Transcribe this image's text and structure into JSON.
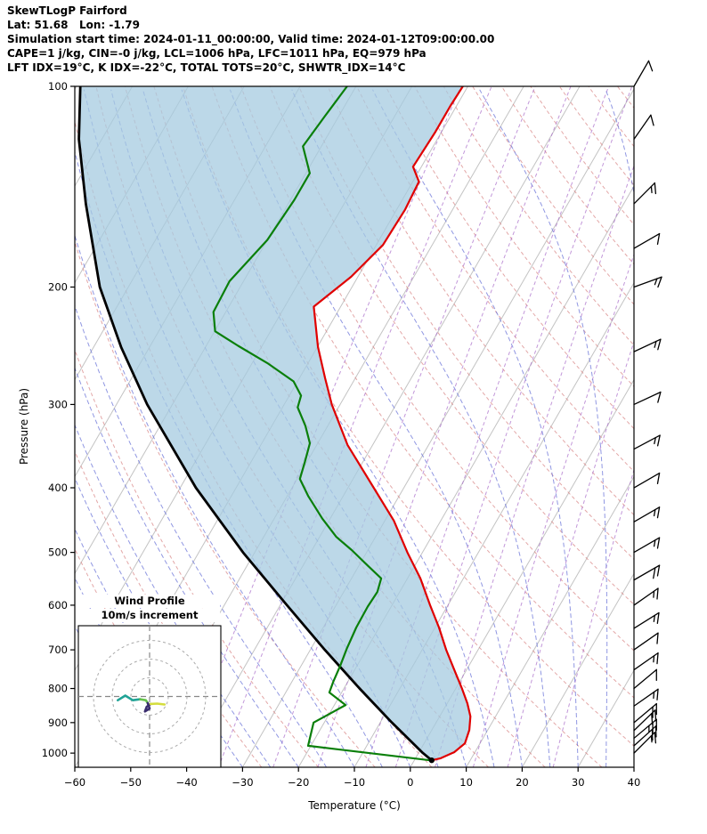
{
  "header": {
    "line1": "SkewTLogP Fairford",
    "line2": "Lat: 51.68   Lon: -1.79",
    "line3": "Simulation start time: 2024-01-11_00:00:00, Valid time: 2024-01-12T09:00:00.00",
    "line4": "CAPE=1 j/kg, CIN=-0 j/kg, LCL=1006 hPa, LFC=1011 hPa, EQ=979 hPa",
    "line5": "LFT IDX=19°C, K IDX=-22°C, TOTAL TOTS=20°C, SHWTR_IDX=14°C"
  },
  "chart_data": {
    "type": "line",
    "diagram": "skew-t-log-p",
    "title": "SkewTLogP Fairford",
    "xlabel": "Temperature (°C)",
    "ylabel": "Pressure (hPa)",
    "x_ticks": [
      -60,
      -50,
      -40,
      -30,
      -20,
      -10,
      0,
      10,
      20,
      30,
      40
    ],
    "y_ticks": [
      100,
      200,
      300,
      400,
      500,
      600,
      700,
      800,
      900,
      1000
    ],
    "t_min": -60,
    "t_max": 40,
    "p_top": 100,
    "p_bottom": 1050,
    "skew_slope": 0.577,
    "series": [
      {
        "name": "temperature",
        "color": "#e00000",
        "units": [
          "hPa",
          "°C"
        ],
        "points": [
          [
            1025,
            3.1
          ],
          [
            1018,
            4.5
          ],
          [
            997,
            6.3
          ],
          [
            967,
            7.3
          ],
          [
            923,
            6.7
          ],
          [
            881,
            5.5
          ],
          [
            842,
            3.6
          ],
          [
            800,
            1.1
          ],
          [
            756,
            -1.8
          ],
          [
            700,
            -5.7
          ],
          [
            648,
            -9.3
          ],
          [
            600,
            -13.2
          ],
          [
            547,
            -17.7
          ],
          [
            500,
            -22.7
          ],
          [
            448,
            -28.4
          ],
          [
            400,
            -35.4
          ],
          [
            345,
            -44.5
          ],
          [
            300,
            -51.5
          ],
          [
            274,
            -55.4
          ],
          [
            246,
            -59.9
          ],
          [
            214,
            -64.8
          ],
          [
            193,
            -61.2
          ],
          [
            173,
            -58.8
          ],
          [
            153,
            -58.5
          ],
          [
            139,
            -58.9
          ],
          [
            132,
            -61.5
          ],
          [
            117,
            -61.1
          ],
          [
            107,
            -61.1
          ],
          [
            100,
            -60.9
          ]
        ]
      },
      {
        "name": "dewpoint",
        "color": "#0a7f0a",
        "units": [
          "hPa",
          "°C"
        ],
        "points": [
          [
            1025,
            2.8
          ],
          [
            975,
            -20.5
          ],
          [
            900,
            -21.9
          ],
          [
            847,
            -18.0
          ],
          [
            811,
            -22.2
          ],
          [
            782,
            -22.6
          ],
          [
            740,
            -23.0
          ],
          [
            697,
            -23.6
          ],
          [
            648,
            -24.1
          ],
          [
            603,
            -24.2
          ],
          [
            573,
            -24.0
          ],
          [
            547,
            -24.7
          ],
          [
            523,
            -28.5
          ],
          [
            496,
            -32.9
          ],
          [
            474,
            -37.0
          ],
          [
            445,
            -41.4
          ],
          [
            412,
            -46.2
          ],
          [
            388,
            -49.5
          ],
          [
            365,
            -50.4
          ],
          [
            343,
            -51.4
          ],
          [
            323,
            -54.0
          ],
          [
            303,
            -57.3
          ],
          [
            291,
            -57.9
          ],
          [
            277,
            -60.7
          ],
          [
            260,
            -67.3
          ],
          [
            245,
            -74.3
          ],
          [
            233,
            -79.9
          ],
          [
            218,
            -82.2
          ],
          [
            196,
            -82.5
          ],
          [
            170,
            -80.0
          ],
          [
            148,
            -79.3
          ],
          [
            135,
            -79.3
          ],
          [
            123,
            -83.3
          ],
          [
            111,
            -82.5
          ],
          [
            100,
            -81.6
          ]
        ]
      },
      {
        "name": "parcel",
        "color": "#000000",
        "units": [
          "hPa",
          "°C"
        ],
        "points": [
          [
            1025,
            3.1
          ],
          [
            1000,
            0.8
          ],
          [
            900,
            -7.9
          ],
          [
            800,
            -17.2
          ],
          [
            700,
            -27.4
          ],
          [
            600,
            -38.8
          ],
          [
            500,
            -52.1
          ],
          [
            400,
            -67.2
          ],
          [
            300,
            -84.5
          ],
          [
            246,
            -95.1
          ],
          [
            200,
            -105.1
          ],
          [
            150,
            -116.2
          ],
          [
            120,
            -124.1
          ],
          [
            100,
            -129.3
          ]
        ]
      }
    ],
    "fill_between": {
      "from": "parcel",
      "to": "temperature",
      "color": "#a5cbe0",
      "opacity": 0.75
    },
    "background": {
      "isotherms": {
        "color": "#c3c3c3",
        "start": -160,
        "end": 40,
        "step": 10
      },
      "dry_adiabats": {
        "color": "#d98a8a",
        "theta_start": -40,
        "theta_end": 200,
        "step": 10
      },
      "moist_adiabats": {
        "color": "#6b74d8",
        "t0_start": -45,
        "t0_end": 40,
        "step": 5
      },
      "mixing_lines": {
        "color": "#a86bc9",
        "values_gkg": [
          0.1,
          0.2,
          0.5,
          1,
          2,
          3,
          5,
          8,
          12,
          20
        ]
      }
    },
    "wind_barbs_p_speed_dir": [
      [
        1000,
        15,
        45
      ],
      [
        975,
        20,
        48
      ],
      [
        950,
        25,
        50
      ],
      [
        925,
        20,
        46
      ],
      [
        900,
        20,
        50
      ],
      [
        850,
        15,
        55
      ],
      [
        800,
        10,
        50
      ],
      [
        750,
        15,
        55
      ],
      [
        700,
        10,
        55
      ],
      [
        650,
        15,
        58
      ],
      [
        600,
        15,
        55
      ],
      [
        550,
        20,
        60
      ],
      [
        500,
        15,
        60
      ],
      [
        450,
        15,
        60
      ],
      [
        400,
        10,
        60
      ],
      [
        350,
        15,
        62
      ],
      [
        300,
        10,
        65
      ],
      [
        250,
        15,
        65
      ],
      [
        200,
        15,
        70
      ],
      [
        175,
        10,
        60
      ],
      [
        150,
        15,
        45
      ],
      [
        120,
        10,
        35
      ],
      [
        100,
        12,
        30
      ]
    ],
    "hodograph": {
      "title": "Wind Profile",
      "subtitle": "10m/s increment",
      "ring_interval_ms": 10,
      "rings": [
        10,
        20,
        30
      ],
      "segments": [
        {
          "color": "#20a396",
          "points": [
            [
              -17,
              -2
            ],
            [
              -13,
              0.5
            ],
            [
              -9,
              -2
            ],
            [
              -5,
              -1.5
            ]
          ]
        },
        {
          "color": "#67c24c",
          "points": [
            [
              -5,
              -1.5
            ],
            [
              -2,
              -2
            ],
            [
              -1,
              -3.5
            ]
          ]
        },
        {
          "color": "#3a2d6e",
          "points": [
            [
              -1,
              -3.5
            ],
            [
              0,
              -6.5
            ],
            [
              -2.5,
              -8
            ],
            [
              -1.5,
              -5.5
            ],
            [
              0.5,
              -4
            ]
          ]
        },
        {
          "color": "#d4dd3e",
          "points": [
            [
              0.5,
              -4
            ],
            [
              4,
              -3.8
            ],
            [
              8,
              -4.3
            ]
          ]
        }
      ]
    }
  }
}
